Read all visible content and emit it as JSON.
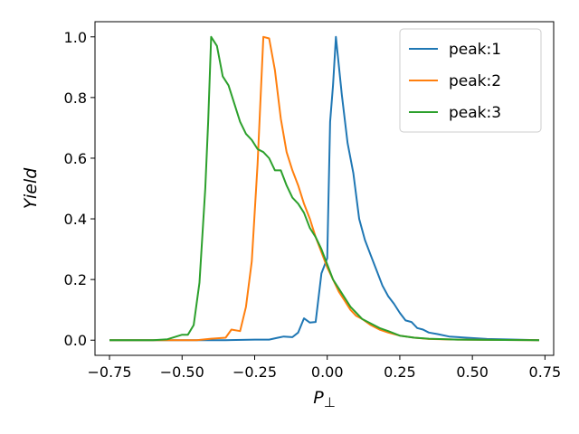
{
  "chart_data": {
    "type": "line",
    "xlabel": "P",
    "xlabel_sub": "⊥",
    "ylabel": "Yield",
    "xlim": [
      -0.8,
      0.78
    ],
    "ylim": [
      -0.05,
      1.05
    ],
    "x_ticks": [
      -0.75,
      -0.5,
      -0.25,
      0.0,
      0.25,
      0.5,
      0.75
    ],
    "x_tick_labels": [
      "−0.75",
      "−0.50",
      "−0.25",
      "0.00",
      "0.25",
      "0.50",
      "0.75"
    ],
    "y_ticks": [
      0.0,
      0.2,
      0.4,
      0.6,
      0.8,
      1.0
    ],
    "y_tick_labels": [
      "0.0",
      "0.2",
      "0.4",
      "0.6",
      "0.8",
      "1.0"
    ],
    "grid": false,
    "legend_position": "top-right",
    "series": [
      {
        "name": "peak:1",
        "color": "#1f77b4",
        "x": [
          -0.75,
          -0.65,
          -0.55,
          -0.45,
          -0.35,
          -0.25,
          -0.2,
          -0.17,
          -0.15,
          -0.12,
          -0.1,
          -0.08,
          -0.06,
          -0.04,
          -0.02,
          0.0,
          0.01,
          0.02,
          0.03,
          0.05,
          0.07,
          0.09,
          0.11,
          0.13,
          0.15,
          0.17,
          0.19,
          0.21,
          0.23,
          0.25,
          0.27,
          0.29,
          0.31,
          0.33,
          0.35,
          0.38,
          0.42,
          0.48,
          0.55,
          0.65,
          0.73
        ],
        "y": [
          0.0,
          0.0,
          0.0,
          0.0,
          0.0,
          0.002,
          0.002,
          0.008,
          0.012,
          0.01,
          0.025,
          0.072,
          0.058,
          0.06,
          0.22,
          0.27,
          0.72,
          0.84,
          1.0,
          0.81,
          0.65,
          0.55,
          0.4,
          0.33,
          0.28,
          0.23,
          0.18,
          0.145,
          0.12,
          0.09,
          0.065,
          0.06,
          0.04,
          0.035,
          0.025,
          0.02,
          0.012,
          0.008,
          0.004,
          0.002,
          0.0
        ]
      },
      {
        "name": "peak:2",
        "color": "#ff7f0e",
        "x": [
          -0.75,
          -0.6,
          -0.5,
          -0.45,
          -0.4,
          -0.35,
          -0.33,
          -0.3,
          -0.28,
          -0.26,
          -0.24,
          -0.22,
          -0.2,
          -0.18,
          -0.16,
          -0.14,
          -0.12,
          -0.1,
          -0.08,
          -0.06,
          -0.04,
          -0.02,
          0.0,
          0.02,
          0.04,
          0.06,
          0.08,
          0.1,
          0.12,
          0.15,
          0.18,
          0.21,
          0.25,
          0.3,
          0.35,
          0.45,
          0.55,
          0.73
        ],
        "y": [
          0.0,
          0.0,
          0.0,
          0.0,
          0.005,
          0.008,
          0.035,
          0.03,
          0.11,
          0.26,
          0.58,
          1.0,
          0.995,
          0.89,
          0.73,
          0.62,
          0.56,
          0.51,
          0.45,
          0.4,
          0.34,
          0.29,
          0.24,
          0.2,
          0.16,
          0.13,
          0.1,
          0.08,
          0.07,
          0.05,
          0.035,
          0.025,
          0.015,
          0.008,
          0.004,
          0.002,
          0.001,
          0.0
        ]
      },
      {
        "name": "peak:3",
        "color": "#2ca02c",
        "x": [
          -0.75,
          -0.6,
          -0.55,
          -0.5,
          -0.48,
          -0.46,
          -0.44,
          -0.42,
          -0.41,
          -0.4,
          -0.38,
          -0.36,
          -0.34,
          -0.32,
          -0.3,
          -0.28,
          -0.26,
          -0.24,
          -0.22,
          -0.2,
          -0.18,
          -0.16,
          -0.14,
          -0.12,
          -0.1,
          -0.08,
          -0.06,
          -0.04,
          -0.02,
          0.0,
          0.02,
          0.04,
          0.06,
          0.08,
          0.1,
          0.12,
          0.15,
          0.18,
          0.21,
          0.25,
          0.3,
          0.35,
          0.45,
          0.55,
          0.73
        ],
        "y": [
          0.0,
          0.0,
          0.003,
          0.018,
          0.018,
          0.05,
          0.19,
          0.5,
          0.72,
          1.0,
          0.97,
          0.87,
          0.84,
          0.78,
          0.72,
          0.68,
          0.66,
          0.63,
          0.62,
          0.6,
          0.56,
          0.56,
          0.51,
          0.47,
          0.45,
          0.42,
          0.37,
          0.34,
          0.3,
          0.25,
          0.2,
          0.17,
          0.14,
          0.11,
          0.09,
          0.07,
          0.055,
          0.04,
          0.03,
          0.015,
          0.008,
          0.005,
          0.002,
          0.001,
          0.0
        ]
      }
    ]
  }
}
